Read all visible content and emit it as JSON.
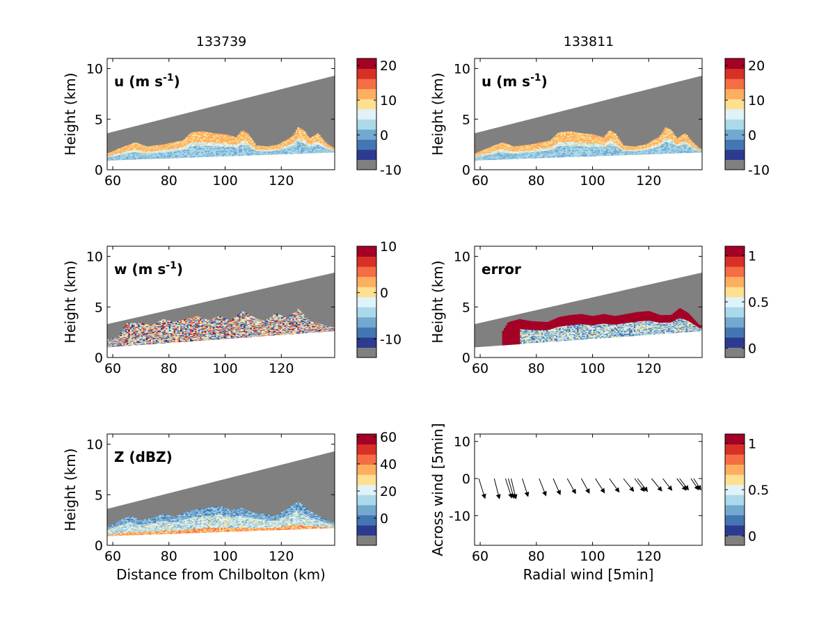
{
  "figure": {
    "column_titles": [
      "133739",
      "133811"
    ],
    "background": "#ffffff",
    "mask_color": "#808080"
  },
  "colormap": [
    "#808080",
    "#2c3b8f",
    "#4576b4",
    "#74a9cf",
    "#abd9e9",
    "#e0f3f8",
    "#fee090",
    "#fdae61",
    "#f46d43",
    "#d73027",
    "#a50026"
  ],
  "chart_data": [
    {
      "type": "heatmap",
      "id": "u1",
      "panel_label": "u (m s",
      "panel_label_sup": "-1",
      "panel_label_tail": ")",
      "ylabel": "Height (km)",
      "xlabel": "",
      "xlim": [
        58,
        139
      ],
      "ylim": [
        0,
        11
      ],
      "xticks": [
        60,
        80,
        100,
        120
      ],
      "yticks": [
        0,
        5,
        10
      ],
      "colorbar_ticks": [
        {
          "value": -10,
          "label": "-10"
        },
        {
          "value": 0,
          "label": "0"
        },
        {
          "value": 10,
          "label": "10"
        },
        {
          "value": 20,
          "label": "20"
        }
      ],
      "colorbar_range": [
        -10,
        22
      ],
      "echo_top": [
        [
          58,
          1.6
        ],
        [
          64,
          2.3
        ],
        [
          68,
          2.7
        ],
        [
          72,
          2.3
        ],
        [
          78,
          2.5
        ],
        [
          85,
          2.9
        ],
        [
          88,
          3.7
        ],
        [
          92,
          3.8
        ],
        [
          96,
          3.6
        ],
        [
          100,
          3.5
        ],
        [
          104,
          3.2
        ],
        [
          106,
          3.9
        ],
        [
          108,
          3.6
        ],
        [
          111,
          2.4
        ],
        [
          115,
          2.3
        ],
        [
          119,
          2.5
        ],
        [
          124,
          3.3
        ],
        [
          126,
          4.2
        ],
        [
          128,
          3.9
        ],
        [
          130,
          3.1
        ],
        [
          133,
          3.6
        ],
        [
          136,
          2.6
        ],
        [
          139,
          2.1
        ]
      ],
      "echo_max": 13,
      "seed": 11
    },
    {
      "type": "heatmap",
      "id": "u2",
      "panel_label": "u (m s",
      "panel_label_sup": "-1",
      "panel_label_tail": ")",
      "ylabel": "Height (km)",
      "xlabel": "",
      "xlim": [
        58,
        139
      ],
      "ylim": [
        0,
        11
      ],
      "xticks": [
        60,
        80,
        100,
        120
      ],
      "yticks": [
        0,
        5,
        10
      ],
      "colorbar_ticks": [
        {
          "value": -10,
          "label": "-10"
        },
        {
          "value": 0,
          "label": "0"
        },
        {
          "value": 10,
          "label": "10"
        },
        {
          "value": 20,
          "label": "20"
        }
      ],
      "colorbar_range": [
        -10,
        22
      ],
      "echo_top": [
        [
          58,
          1.6
        ],
        [
          64,
          2.3
        ],
        [
          68,
          2.7
        ],
        [
          72,
          2.3
        ],
        [
          78,
          2.5
        ],
        [
          85,
          2.9
        ],
        [
          88,
          3.7
        ],
        [
          92,
          3.8
        ],
        [
          96,
          3.6
        ],
        [
          100,
          3.5
        ],
        [
          104,
          3.2
        ],
        [
          106,
          3.9
        ],
        [
          108,
          3.6
        ],
        [
          111,
          2.4
        ],
        [
          115,
          2.3
        ],
        [
          119,
          2.5
        ],
        [
          124,
          3.3
        ],
        [
          126,
          4.2
        ],
        [
          128,
          3.9
        ],
        [
          130,
          3.1
        ],
        [
          133,
          3.6
        ],
        [
          136,
          2.6
        ],
        [
          138,
          2.1
        ]
      ],
      "echo_max": 13,
      "seed": 12
    },
    {
      "type": "heatmap",
      "id": "w",
      "panel_label": "w (m s",
      "panel_label_sup": "-1",
      "panel_label_tail": ")",
      "ylabel": "Height (km)",
      "xlabel": "",
      "xlim": [
        58,
        139
      ],
      "ylim": [
        0,
        11
      ],
      "xticks": [
        60,
        80,
        100,
        120
      ],
      "yticks": [
        0,
        5,
        10
      ],
      "colorbar_ticks": [
        {
          "value": -10,
          "label": "-10"
        },
        {
          "value": 0,
          "label": "0"
        },
        {
          "value": 10,
          "label": "10"
        }
      ],
      "colorbar_range": [
        -14,
        10
      ],
      "echo_top": [
        [
          58,
          1.8
        ],
        [
          62,
          2.0
        ],
        [
          65,
          3.4
        ],
        [
          70,
          3.4
        ],
        [
          74,
          3.2
        ],
        [
          78,
          3.8
        ],
        [
          82,
          3.5
        ],
        [
          86,
          3.8
        ],
        [
          90,
          4.1
        ],
        [
          94,
          3.7
        ],
        [
          98,
          4.1
        ],
        [
          102,
          3.6
        ],
        [
          106,
          4.6
        ],
        [
          110,
          4.0
        ],
        [
          114,
          3.6
        ],
        [
          118,
          4.4
        ],
        [
          122,
          3.9
        ],
        [
          126,
          4.8
        ],
        [
          130,
          3.6
        ],
        [
          134,
          3.3
        ],
        [
          138,
          3.0
        ]
      ],
      "echo_max": 10,
      "seed": 21
    },
    {
      "type": "heatmap",
      "id": "err",
      "panel_label": "error",
      "panel_label_sup": "",
      "panel_label_tail": "",
      "ylabel": "Height (km)",
      "xlabel": "",
      "xlim": [
        58,
        139
      ],
      "ylim": [
        0,
        11
      ],
      "xticks": [
        60,
        80,
        100,
        120
      ],
      "yticks": [
        0,
        5,
        10
      ],
      "colorbar_ticks": [
        {
          "value": 0,
          "label": "0"
        },
        {
          "value": 0.5,
          "label": "0.5"
        },
        {
          "value": 1,
          "label": "1"
        }
      ],
      "colorbar_range": [
        -0.1,
        1.1
      ],
      "echo_top": [
        [
          68,
          2.6
        ],
        [
          70,
          3.5
        ],
        [
          74,
          3.8
        ],
        [
          78,
          3.6
        ],
        [
          84,
          3.5
        ],
        [
          88,
          4.0
        ],
        [
          92,
          4.2
        ],
        [
          96,
          4.3
        ],
        [
          100,
          4.1
        ],
        [
          104,
          4.3
        ],
        [
          108,
          4.1
        ],
        [
          112,
          4.3
        ],
        [
          116,
          4.5
        ],
        [
          120,
          4.6
        ],
        [
          124,
          4.2
        ],
        [
          128,
          4.2
        ],
        [
          131,
          4.9
        ],
        [
          134,
          4.4
        ],
        [
          138,
          3.2
        ]
      ],
      "echo_max": 10,
      "seed": 31
    },
    {
      "type": "heatmap",
      "id": "z",
      "panel_label": "Z (dBZ)",
      "panel_label_sup": "",
      "panel_label_tail": "",
      "ylabel": "Height (km)",
      "xlabel": "Distance from Chilbolton (km)",
      "xlim": [
        58,
        139
      ],
      "ylim": [
        0,
        11
      ],
      "xticks": [
        60,
        80,
        100,
        120
      ],
      "yticks": [
        0,
        5,
        10
      ],
      "colorbar_ticks": [
        {
          "value": 0,
          "label": "0"
        },
        {
          "value": 20,
          "label": "20"
        },
        {
          "value": 40,
          "label": "40"
        },
        {
          "value": 60,
          "label": "60"
        }
      ],
      "colorbar_range": [
        -20,
        62
      ],
      "echo_top": [
        [
          58,
          1.8
        ],
        [
          62,
          2.4
        ],
        [
          66,
          2.9
        ],
        [
          70,
          2.5
        ],
        [
          74,
          2.7
        ],
        [
          78,
          3.1
        ],
        [
          82,
          2.8
        ],
        [
          86,
          3.3
        ],
        [
          90,
          3.6
        ],
        [
          94,
          3.7
        ],
        [
          98,
          3.9
        ],
        [
          102,
          3.5
        ],
        [
          106,
          3.7
        ],
        [
          110,
          3.2
        ],
        [
          114,
          3.1
        ],
        [
          118,
          2.9
        ],
        [
          122,
          3.6
        ],
        [
          126,
          4.3
        ],
        [
          130,
          3.4
        ],
        [
          134,
          2.8
        ],
        [
          138,
          2.3
        ]
      ],
      "echo_max": 45,
      "seed": 41
    },
    {
      "type": "scatter",
      "id": "vec",
      "panel_label": "",
      "ylabel": "Across wind [5min]",
      "xlabel": "Radial wind [5min]",
      "xlim": [
        58,
        139
      ],
      "ylim": [
        -18,
        12
      ],
      "xticks": [
        60,
        80,
        100,
        120
      ],
      "yticks": [
        -10,
        0,
        10
      ],
      "ytick_labels": [
        "-10",
        "0",
        "10"
      ],
      "colorbar_ticks": [
        {
          "value": 0,
          "label": "0"
        },
        {
          "value": 0.5,
          "label": "0.5"
        },
        {
          "value": 1,
          "label": "1"
        }
      ],
      "colorbar_range": [
        -0.1,
        1.1
      ],
      "arrows": [
        {
          "x": 59.5,
          "y": 0,
          "dx": 2.3,
          "dy": -5.5
        },
        {
          "x": 65,
          "y": 0,
          "dx": 1.9,
          "dy": -5.6
        },
        {
          "x": 69,
          "y": 0,
          "dx": 2.3,
          "dy": -5.4
        },
        {
          "x": 70,
          "y": 0,
          "dx": 2.1,
          "dy": -5.5
        },
        {
          "x": 71,
          "y": 0,
          "dx": 1.8,
          "dy": -5.6
        },
        {
          "x": 75,
          "y": 0,
          "dx": 2.1,
          "dy": -5.0
        },
        {
          "x": 81,
          "y": 0,
          "dx": 2.5,
          "dy": -4.8
        },
        {
          "x": 86,
          "y": 0,
          "dx": 2.6,
          "dy": -4.5
        },
        {
          "x": 91,
          "y": 0,
          "dx": 3.1,
          "dy": -4.2
        },
        {
          "x": 96,
          "y": 0,
          "dx": 3.0,
          "dy": -4.1
        },
        {
          "x": 101,
          "y": 0,
          "dx": 3.4,
          "dy": -4.0
        },
        {
          "x": 106,
          "y": 0,
          "dx": 3.6,
          "dy": -3.8
        },
        {
          "x": 111,
          "y": 0,
          "dx": 3.8,
          "dy": -3.6
        },
        {
          "x": 115,
          "y": 0,
          "dx": 3.6,
          "dy": -3.6
        },
        {
          "x": 116,
          "y": 0,
          "dx": 3.7,
          "dy": -3.6
        },
        {
          "x": 121,
          "y": 0,
          "dx": 3.8,
          "dy": -3.5
        },
        {
          "x": 125,
          "y": 0,
          "dx": 3.4,
          "dy": -3.3
        },
        {
          "x": 130,
          "y": 0,
          "dx": 3.5,
          "dy": -3.3
        },
        {
          "x": 131,
          "y": 0,
          "dx": 3.3,
          "dy": -3.2
        },
        {
          "x": 135,
          "y": 0,
          "dx": 2.9,
          "dy": -3.2
        },
        {
          "x": 136,
          "y": 0,
          "dx": 2.7,
          "dy": -3.2
        }
      ]
    }
  ]
}
